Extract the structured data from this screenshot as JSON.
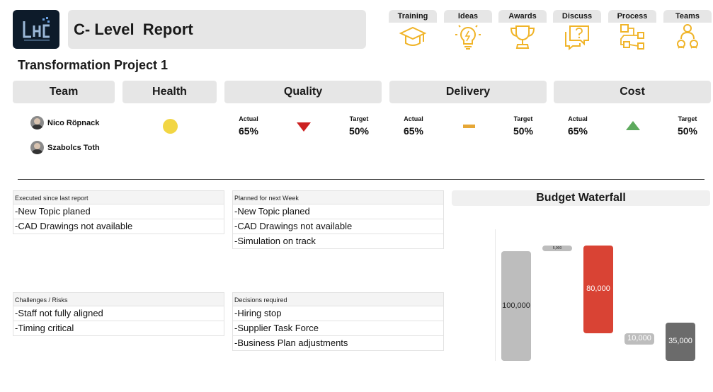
{
  "header": {
    "logo_name": "company-logo",
    "report_title": "C- Level  Report"
  },
  "nav": [
    {
      "label": "Training",
      "icon": "graduation-cap-icon"
    },
    {
      "label": "Ideas",
      "icon": "lightbulb-icon"
    },
    {
      "label": "Awards",
      "icon": "trophy-icon"
    },
    {
      "label": "Discuss",
      "icon": "question-bubble-icon"
    },
    {
      "label": "Process",
      "icon": "process-flow-icon"
    },
    {
      "label": "Teams",
      "icon": "team-icon"
    }
  ],
  "project_title": "Transformation Project 1",
  "columns": {
    "team": "Team",
    "health": "Health",
    "quality": "Quality",
    "delivery": "Delivery",
    "cost": "Cost"
  },
  "team_members": [
    "Nico Röpnack",
    "Szabolcs Toth"
  ],
  "health_status": {
    "color": "#f2d644",
    "state": "yellow"
  },
  "kpis": {
    "quality": {
      "actual_label": "Actual",
      "actual": "65%",
      "target_label": "Target",
      "target": "50%",
      "trend": "down",
      "trend_color": "#cc2222"
    },
    "delivery": {
      "actual_label": "Actual",
      "actual": "65%",
      "target_label": "Target",
      "target": "50%",
      "trend": "flat",
      "trend_color": "#e6a736"
    },
    "cost": {
      "actual_label": "Actual",
      "actual": "65%",
      "target_label": "Target",
      "target": "50%",
      "trend": "up",
      "trend_color": "#5daa5d"
    }
  },
  "panels": {
    "executed": {
      "title": "Executed since last report",
      "items": [
        "-New Topic planed",
        "-CAD Drawings not available"
      ]
    },
    "planned": {
      "title": "Planned for next Week",
      "items": [
        "-New Topic planed",
        "-CAD Drawings not available",
        "-Simulation on track"
      ]
    },
    "risks": {
      "title": "Challenges / Risks",
      "items": [
        "-Staff not fully aligned",
        "-Timing critical"
      ]
    },
    "decisions": {
      "title": "Decisions required",
      "items": [
        "-Hiring stop",
        "-Supplier Task Force",
        "-Business Plan adjustments"
      ]
    }
  },
  "chart_data": {
    "type": "bar",
    "title": "Budget Waterfall",
    "categories": [
      "",
      "",
      "",
      "",
      ""
    ],
    "values": [
      100000,
      5000,
      80000,
      10000,
      35000
    ],
    "value_labels": [
      "100,000",
      "5,000",
      "80,000",
      "10,000",
      "35,000"
    ],
    "bar_kinds": [
      "total",
      "increase",
      "decrease",
      "decrease",
      "total"
    ],
    "colors": {
      "total": "#bdbdbd",
      "increase": "#bdbdbd",
      "decrease": "#d94334",
      "decrease_small": "#bdbdbd",
      "end_total": "#6b6b6b"
    },
    "ylim": [
      0,
      110000
    ]
  }
}
